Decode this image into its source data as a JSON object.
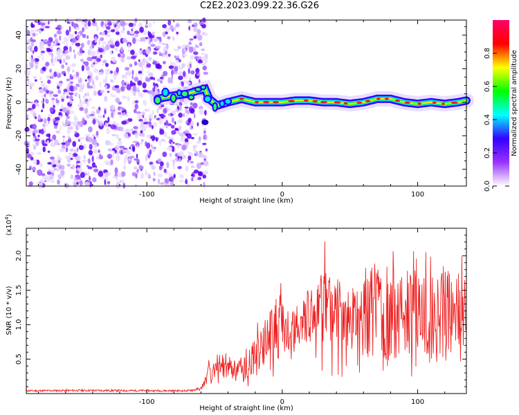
{
  "title": "C2E2.2023.099.22.36.G26",
  "chart_data": [
    {
      "type": "heatmap",
      "xlabel": "Height of straight line (km)",
      "ylabel": "Frequency (Hz)",
      "xlim": [
        -189,
        136
      ],
      "ylim": [
        -50,
        49
      ],
      "x_ticks": [
        -100,
        0,
        100
      ],
      "y_ticks": [
        -40,
        -20,
        0,
        20,
        40
      ],
      "colorbar": {
        "label": "Normalized spectral amplitude",
        "range": [
          0,
          1
        ],
        "ticks": [
          "0.0",
          "0.2",
          "0.4",
          "0.6",
          "0.8"
        ],
        "colors": [
          "#ffffff",
          "#9933ff",
          "#3300ff",
          "#00ffff",
          "#00ff00",
          "#ffff00",
          "#ff0000",
          "#ff0066"
        ]
      },
      "ridge": {
        "x": [
          -92,
          -80,
          -70,
          -62,
          -57,
          -54,
          -48,
          -40,
          -30,
          -20,
          -10,
          0,
          10,
          20,
          30,
          40,
          50,
          60,
          70,
          80,
          90,
          100,
          110,
          120,
          130,
          136
        ],
        "y": [
          2,
          4,
          5,
          7,
          8,
          2,
          -2,
          0,
          2,
          0,
          0,
          0,
          1,
          1,
          0,
          0,
          -1,
          0,
          2,
          2,
          0,
          -1,
          0,
          -1,
          0,
          1
        ]
      },
      "noise_region_x": [
        -189,
        -62
      ]
    },
    {
      "type": "line",
      "xlabel": "Height of straight line (km)",
      "ylabel": "SNR (10 * v/v)",
      "multiplier": "(x10",
      "multiplier_exp": "4",
      "xlim": [
        -189,
        136
      ],
      "ylim": [
        0,
        24000
      ],
      "x_ticks": [
        -100,
        0,
        100
      ],
      "y_ticks": [
        0.5,
        1.0,
        1.5,
        2.0
      ],
      "y_tick_labels": [
        "0.5",
        "1.0",
        "1.5",
        "2.0"
      ],
      "color": "#ee2222",
      "series": [
        {
          "x": [
            -189,
            -150,
            -100,
            -70,
            -60,
            -55,
            -50,
            -45,
            -40,
            -35,
            -30,
            -25,
            -20,
            -15,
            -10,
            -5,
            0,
            5,
            10,
            15,
            20,
            25,
            30,
            35,
            40,
            45,
            50,
            55,
            60,
            65,
            70,
            75,
            80,
            85,
            90,
            95,
            100,
            105,
            110,
            115,
            120,
            125,
            130,
            136
          ],
          "y": [
            400,
            450,
            420,
            400,
            700,
            2500,
            3500,
            4000,
            3800,
            3500,
            3400,
            4500,
            5500,
            6000,
            8000,
            9000,
            9500,
            9000,
            9300,
            10500,
            11500,
            12500,
            13000,
            13000,
            12500,
            12000,
            11500,
            12000,
            12500,
            12500,
            12000,
            11000,
            11500,
            11000,
            10500,
            11000,
            11500,
            11000,
            10500,
            11000,
            12000,
            11500,
            11000,
            10500
          ]
        }
      ]
    }
  ]
}
